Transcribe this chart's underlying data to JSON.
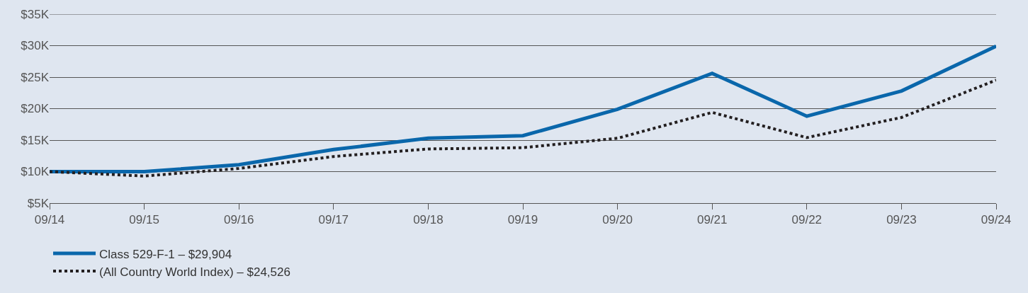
{
  "chart_data": {
    "type": "line",
    "categories": [
      "09/14",
      "09/15",
      "09/16",
      "09/17",
      "09/18",
      "09/19",
      "09/20",
      "09/21",
      "09/22",
      "09/23",
      "09/24"
    ],
    "series": [
      {
        "name": "Class 529-F-1 – $29,904",
        "color": "#0a67ab",
        "line_style": "solid",
        "values": [
          10000,
          10000,
          11100,
          13500,
          15300,
          15700,
          19900,
          25600,
          18800,
          22800,
          29904
        ]
      },
      {
        "name": "(All Country World Index) – $24,526",
        "color": "#231f20",
        "line_style": "dotted",
        "values": [
          10000,
          9300,
          10500,
          12400,
          13600,
          13800,
          15300,
          19400,
          15400,
          18600,
          24526
        ]
      }
    ],
    "ylim": [
      5000,
      35000
    ],
    "yticks": [
      {
        "value": 5000,
        "label": "$5K"
      },
      {
        "value": 10000,
        "label": "$10K"
      },
      {
        "value": 15000,
        "label": "$15K"
      },
      {
        "value": 20000,
        "label": "$20K"
      },
      {
        "value": 25000,
        "label": "$25K"
      },
      {
        "value": 30000,
        "label": "$30K"
      },
      {
        "value": 35000,
        "label": "$35K"
      }
    ],
    "grid": "y",
    "legend": "bottom left",
    "marker": "none"
  }
}
